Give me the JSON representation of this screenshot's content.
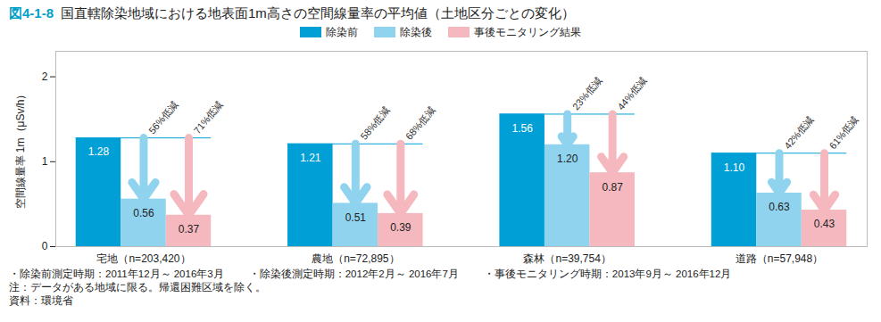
{
  "chart_data": {
    "type": "bar",
    "title": "図4-1-8　国直轄除染地域における地表面1m高さの空間線量率の平均値（土地区分ごとの変化）",
    "y_label": "空間線量率 1m（μSv/h）",
    "categories": [
      "宅地（n=203,420）",
      "農地（n=72,895）",
      "森林（n=39,754）",
      "道路（n=57,948）"
    ],
    "series": [
      {
        "name": "除染前",
        "color": "#00a0d6",
        "values": [
          1.28,
          1.21,
          1.56,
          1.1
        ],
        "value_labels": [
          "1.28",
          "1.21",
          "1.56",
          "1.10"
        ]
      },
      {
        "name": "除染後",
        "color": "#8fd3ef",
        "values": [
          0.56,
          0.51,
          1.2,
          0.63
        ],
        "value_labels": [
          "0.56",
          "0.51",
          "1.20",
          "0.63"
        ]
      },
      {
        "name": "事後モニタリング結果",
        "color": "#f5b8bf",
        "values": [
          0.37,
          0.39,
          0.87,
          0.43
        ],
        "value_labels": [
          "0.37",
          "0.39",
          "0.87",
          "0.43"
        ]
      }
    ],
    "annotations": [
      {
        "series": "除染後",
        "category": "宅地（n=203,420）",
        "text": "56%低減"
      },
      {
        "series": "事後モニタリング結果",
        "category": "宅地（n=203,420）",
        "text": "71%低減"
      },
      {
        "series": "除染後",
        "category": "農地（n=72,895）",
        "text": "58%低減"
      },
      {
        "series": "事後モニタリング結果",
        "category": "農地（n=72,895）",
        "text": "68%低減"
      },
      {
        "series": "除染後",
        "category": "森林（n=39,754）",
        "text": "23%低減"
      },
      {
        "series": "事後モニタリング結果",
        "category": "森林（n=39,754）",
        "text": "44%低減"
      },
      {
        "series": "除染後",
        "category": "道路（n=57,948）",
        "text": "42%低減"
      },
      {
        "series": "事後モニタリング結果",
        "category": "道路（n=57,948）",
        "text": "61%低減"
      }
    ],
    "ylim": [
      0,
      2.3
    ],
    "yticks": [
      0,
      1,
      2
    ],
    "grid": false,
    "legend": "top",
    "data_labels": true,
    "notes": [
      "・除染前測定時期：2011年12月～ 2016年3月",
      "・除染後測定時期：2012年2月～ 2016年7月",
      "・事後モニタリング時期：2013年9月～ 2016年12月"
    ],
    "footnotes": [
      "注：データがある地域に限る。帰還困難区域を除く。",
      "資料：環境省"
    ]
  }
}
